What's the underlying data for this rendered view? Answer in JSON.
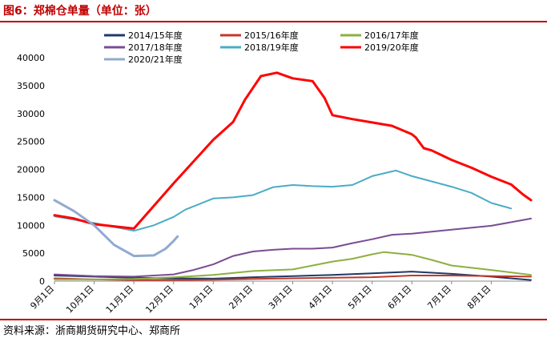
{
  "header": {
    "title": "图6：郑棉仓单量（单位：张）"
  },
  "footer": {
    "source": "资料来源：浙商期货研究中心、郑商所"
  },
  "chart_data": {
    "type": "line",
    "title": "",
    "xlabel": "",
    "ylabel": "",
    "ylim": [
      0,
      40000
    ],
    "yticks": [
      0,
      5000,
      10000,
      15000,
      20000,
      25000,
      30000,
      35000,
      40000
    ],
    "xlim": [
      0,
      12
    ],
    "xticks": [
      {
        "x": 0,
        "label": "9月1日"
      },
      {
        "x": 1,
        "label": "10月1日"
      },
      {
        "x": 2,
        "label": "11月1日"
      },
      {
        "x": 3,
        "label": "12月1日"
      },
      {
        "x": 4,
        "label": "1月1日"
      },
      {
        "x": 5,
        "label": "2月1日"
      },
      {
        "x": 6,
        "label": "3月1日"
      },
      {
        "x": 7,
        "label": "4月1日"
      },
      {
        "x": 8,
        "label": "5月1日"
      },
      {
        "x": 9,
        "label": "6月1日"
      },
      {
        "x": 10,
        "label": "7月1日"
      },
      {
        "x": 11,
        "label": "8月1日"
      }
    ],
    "legend_position": "top",
    "series": [
      {
        "name": "2014/15年度",
        "color": "#1f3a68",
        "width": 2,
        "points": [
          [
            0,
            1000
          ],
          [
            1,
            800
          ],
          [
            2,
            600
          ],
          [
            3,
            500
          ],
          [
            4,
            450
          ],
          [
            5,
            700
          ],
          [
            6,
            900
          ],
          [
            7,
            1100
          ],
          [
            8,
            1400
          ],
          [
            9,
            1700
          ],
          [
            10,
            1300
          ],
          [
            11,
            800
          ],
          [
            12,
            200
          ]
        ]
      },
      {
        "name": "2015/16年度",
        "color": "#c0392b",
        "width": 2,
        "points": [
          [
            0,
            500
          ],
          [
            1,
            300
          ],
          [
            2,
            200
          ],
          [
            3,
            200
          ],
          [
            4,
            250
          ],
          [
            5,
            400
          ],
          [
            6,
            500
          ],
          [
            7,
            600
          ],
          [
            8,
            700
          ],
          [
            9,
            1000
          ],
          [
            10,
            1000
          ],
          [
            11,
            900
          ],
          [
            12,
            800
          ]
        ]
      },
      {
        "name": "2016/17年度",
        "color": "#8db040",
        "width": 2,
        "points": [
          [
            0,
            300
          ],
          [
            1,
            300
          ],
          [
            2,
            400
          ],
          [
            3,
            700
          ],
          [
            4,
            1100
          ],
          [
            5,
            1800
          ],
          [
            6,
            2100
          ],
          [
            6.5,
            2800
          ],
          [
            7,
            3500
          ],
          [
            7.5,
            4000
          ],
          [
            8,
            4800
          ],
          [
            8.3,
            5200
          ],
          [
            9,
            4700
          ],
          [
            9.5,
            3800
          ],
          [
            10,
            2800
          ],
          [
            11,
            2000
          ],
          [
            12,
            1100
          ]
        ]
      },
      {
        "name": "2017/18年度",
        "color": "#7a4c94",
        "width": 2,
        "points": [
          [
            0,
            1200
          ],
          [
            1,
            900
          ],
          [
            2,
            800
          ],
          [
            3,
            1200
          ],
          [
            3.5,
            2000
          ],
          [
            4,
            3000
          ],
          [
            4.5,
            4500
          ],
          [
            5,
            5300
          ],
          [
            5.5,
            5600
          ],
          [
            6,
            5800
          ],
          [
            6.5,
            5800
          ],
          [
            7,
            6000
          ],
          [
            7.5,
            6800
          ],
          [
            8,
            7500
          ],
          [
            8.5,
            8300
          ],
          [
            9,
            8500
          ],
          [
            10,
            9200
          ],
          [
            11,
            9900
          ],
          [
            12,
            11200
          ]
        ]
      },
      {
        "name": "2018/19年度",
        "color": "#4bacc6",
        "width": 2,
        "points": [
          [
            0,
            11600
          ],
          [
            1,
            10400
          ],
          [
            2,
            9000
          ],
          [
            2.5,
            10000
          ],
          [
            3,
            11500
          ],
          [
            3.3,
            12800
          ],
          [
            4,
            14800
          ],
          [
            4.5,
            15000
          ],
          [
            5,
            15400
          ],
          [
            5.5,
            16800
          ],
          [
            6,
            17200
          ],
          [
            6.5,
            17000
          ],
          [
            7,
            16900
          ],
          [
            7.5,
            17200
          ],
          [
            8,
            18800
          ],
          [
            8.6,
            19800
          ],
          [
            9,
            18800
          ],
          [
            10,
            16900
          ],
          [
            10.5,
            15800
          ],
          [
            11,
            14000
          ],
          [
            11.5,
            13000
          ]
        ]
      },
      {
        "name": "2019/20年度",
        "color": "#ff0000",
        "width": 3,
        "points": [
          [
            0,
            11800
          ],
          [
            0.5,
            11200
          ],
          [
            1,
            10200
          ],
          [
            1.5,
            9800
          ],
          [
            2,
            9400
          ],
          [
            3,
            17500
          ],
          [
            4,
            25300
          ],
          [
            4.5,
            28500
          ],
          [
            4.8,
            32500
          ],
          [
            5.2,
            36700
          ],
          [
            5.6,
            37300
          ],
          [
            6,
            36300
          ],
          [
            6.5,
            35800
          ],
          [
            6.8,
            32800
          ],
          [
            7,
            29700
          ],
          [
            7.5,
            29000
          ],
          [
            8,
            28400
          ],
          [
            8.5,
            27800
          ],
          [
            9,
            26300
          ],
          [
            9.1,
            25700
          ],
          [
            9.3,
            23800
          ],
          [
            9.5,
            23400
          ],
          [
            10,
            21700
          ],
          [
            10.5,
            20300
          ],
          [
            11,
            18700
          ],
          [
            11.5,
            17300
          ],
          [
            11.8,
            15500
          ],
          [
            12,
            14500
          ]
        ]
      },
      {
        "name": "2020/21年度",
        "color": "#92a9cf",
        "width": 3,
        "points": [
          [
            0,
            14500
          ],
          [
            0.5,
            12500
          ],
          [
            1,
            10000
          ],
          [
            1.5,
            6500
          ],
          [
            2,
            4500
          ],
          [
            2.5,
            4600
          ],
          [
            2.8,
            5800
          ],
          [
            3,
            7200
          ],
          [
            3.1,
            8000
          ]
        ]
      }
    ]
  }
}
